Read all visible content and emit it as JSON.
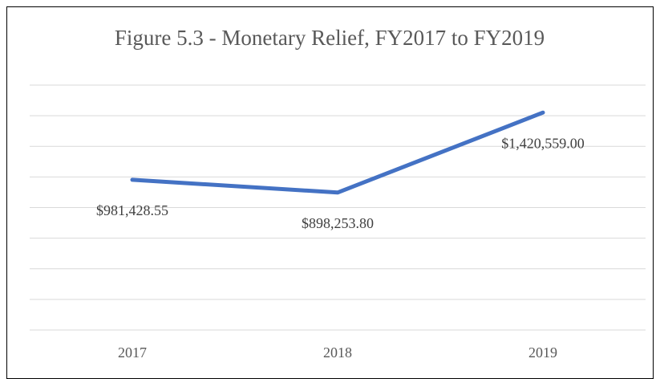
{
  "chart_data": {
    "type": "line",
    "title": "Figure 5.3 - Monetary Relief, FY2017 to FY2019",
    "categories": [
      "2017",
      "2018",
      "2019"
    ],
    "values": [
      981428.55,
      898253.8,
      1420559.0
    ],
    "value_labels": [
      "$981,428.55",
      "$898,253.80",
      "$1,420,559.00"
    ],
    "color": "#4472c4",
    "ylim": [
      0,
      1600000
    ],
    "yticks": [
      0,
      200000,
      400000,
      600000,
      800000,
      1000000,
      1200000,
      1400000,
      1600000
    ],
    "grid": true
  }
}
